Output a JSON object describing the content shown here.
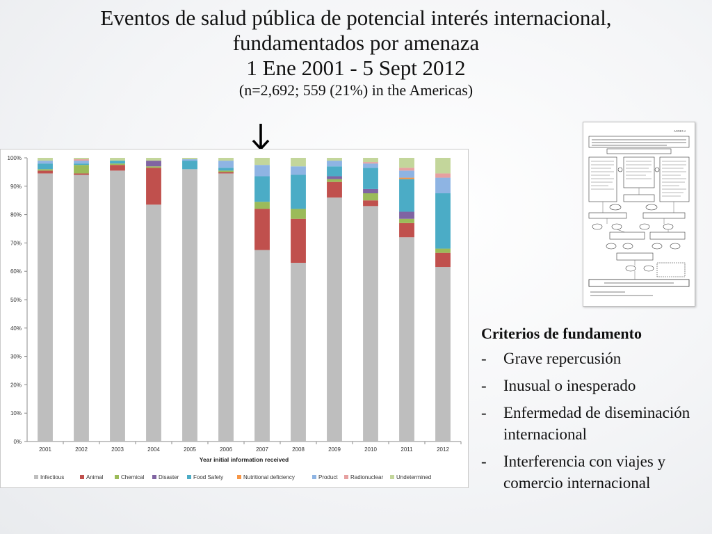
{
  "title": {
    "line1": "Eventos de salud pública de potencial interés internacional,",
    "line2": "fundamentados por amenaza",
    "line3": "1 Ene 2001 - 5 Sept 2012",
    "line4": "(n=2,692; 559 (21%) in the Americas)"
  },
  "criteria": {
    "heading": "Criterios de fundamento",
    "items": [
      {
        "dash": "-",
        "text": "Grave repercusión"
      },
      {
        "dash": "-",
        "text": "Inusual o inesperado"
      },
      {
        "dash": "-",
        "text": "Enfermedad de diseminación internacional"
      },
      {
        "dash": "-",
        "text": "Interferencia con viajes y comercio internacional"
      }
    ]
  },
  "chart_data": {
    "type": "bar",
    "stacked": true,
    "xlabel": "Year initial information received",
    "ylabel": "",
    "ylim": [
      0,
      100
    ],
    "ytick_labels": [
      "0%",
      "10%",
      "20%",
      "30%",
      "40%",
      "50%",
      "60%",
      "70%",
      "80%",
      "90%",
      "100%"
    ],
    "grid": false,
    "legend_position": "bottom",
    "categories": [
      "2001",
      "2002",
      "2003",
      "2004",
      "2005",
      "2006",
      "2007",
      "2008",
      "2009",
      "2010",
      "2011",
      "2012"
    ],
    "series": [
      {
        "name": "Infectious",
        "color": "#bebebe",
        "values": [
          94.5,
          94,
          95.5,
          83.5,
          96,
          94.5,
          67.5,
          63,
          86,
          83,
          72,
          61.5
        ]
      },
      {
        "name": "Animal",
        "color": "#c0504d",
        "values": [
          1,
          0.5,
          2,
          13,
          0,
          0.5,
          14.5,
          15.5,
          5.5,
          2,
          5,
          5
        ]
      },
      {
        "name": "Chemical",
        "color": "#9bbb59",
        "values": [
          0.5,
          3,
          0.5,
          0.5,
          0,
          0.5,
          2.5,
          3.5,
          1,
          2.5,
          1.5,
          1.5
        ]
      },
      {
        "name": "Disaster",
        "color": "#8064a2",
        "values": [
          0,
          0,
          0,
          2,
          0,
          0,
          0,
          0,
          1,
          1.5,
          2.5,
          0
        ]
      },
      {
        "name": "Food Safety",
        "color": "#4bacc6",
        "values": [
          2,
          0.5,
          1,
          0,
          3,
          1,
          9,
          12,
          3.5,
          7.5,
          11.5,
          19.5
        ]
      },
      {
        "name": "Nutritional deficiency",
        "color": "#f79646",
        "values": [
          0,
          0,
          0,
          0,
          0,
          0,
          0,
          0,
          0,
          0,
          0.5,
          0
        ]
      },
      {
        "name": "Product",
        "color": "#8eb4e3",
        "values": [
          1,
          1,
          0,
          0,
          0.5,
          2.5,
          4,
          3,
          2,
          1.5,
          2.5,
          5.5
        ]
      },
      {
        "name": "Radionuclear",
        "color": "#e6a0a0",
        "values": [
          0,
          0.5,
          0,
          0,
          0,
          0,
          0,
          0,
          0,
          0.5,
          1,
          1.5
        ]
      },
      {
        "name": "Undetermined",
        "color": "#c3d69b",
        "values": [
          1,
          0.5,
          1,
          1,
          0.5,
          1,
          2.5,
          3,
          1,
          1.5,
          3.5,
          5.5
        ]
      }
    ]
  }
}
